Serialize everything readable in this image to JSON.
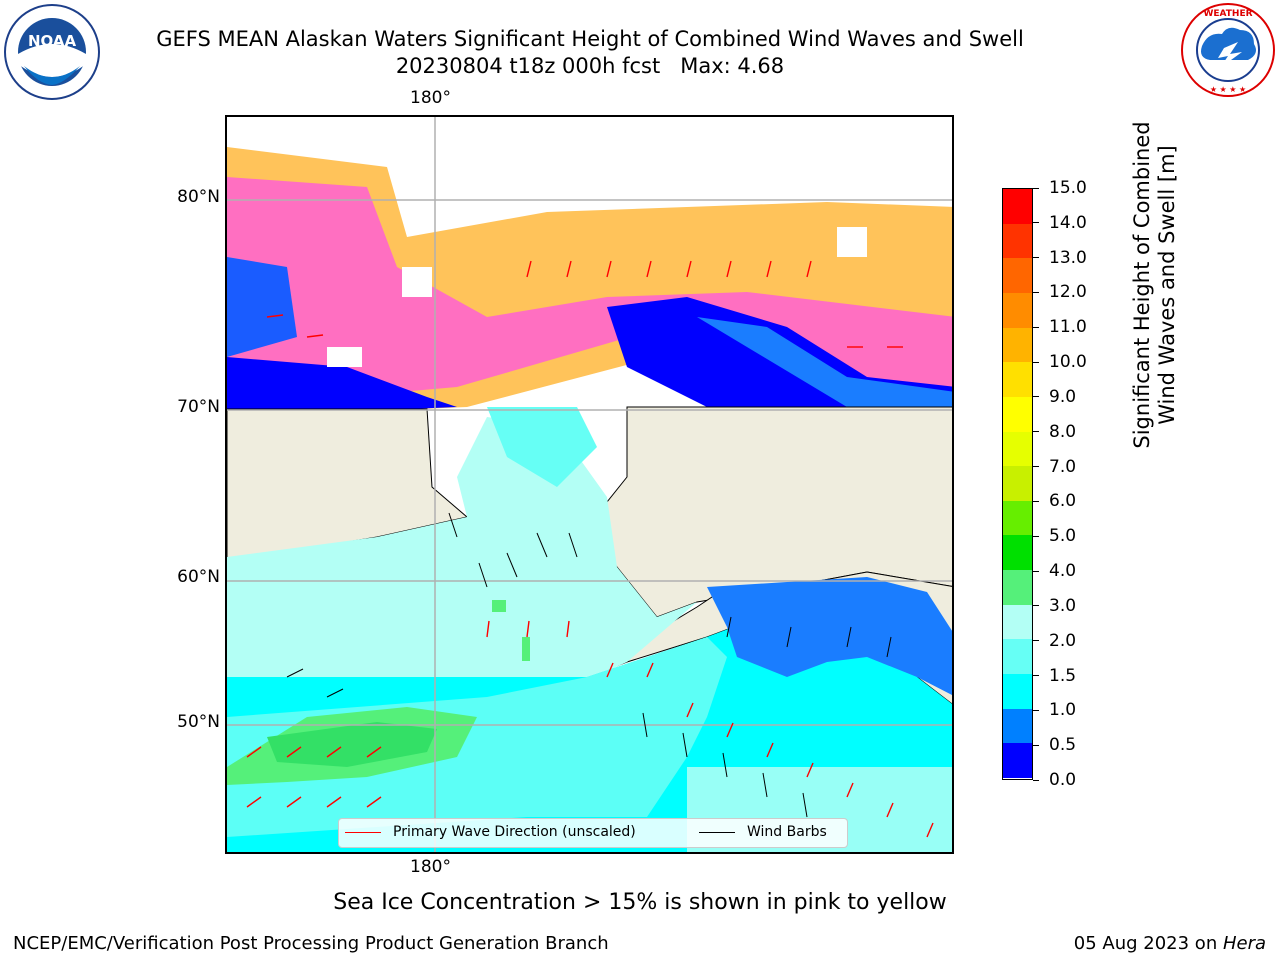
{
  "header": {
    "title_line1": "GEFS MEAN Alaskan Waters Significant Height of Combined Wind Waves and Swell",
    "title_line2": "20230804 t18z 000h fcst   Max: 4.68"
  },
  "logos": {
    "noaa_text": "NOAA",
    "noaa_ring_text": "NATIONAL OCEANIC AND ATMOSPHERIC ADMINISTRATION · U.S. DEPARTMENT OF COMMERCE",
    "nws_ring_text": "NATIONAL WEATHER SERVICE"
  },
  "map": {
    "lon_label_top": "180°",
    "lon_label_bottom": "180°",
    "lat_labels": [
      "80°N",
      "70°N",
      "60°N",
      "50°N"
    ],
    "legend": {
      "wave_label": "Primary Wave Direction (unscaled)",
      "wave_color": "#ff0000",
      "wind_label": "Wind Barbs",
      "wind_color": "#000000"
    },
    "land_color": "#efedde",
    "grid_color": "#b0b0b0"
  },
  "colorbar": {
    "label_line1": "Significant Height of Combined",
    "label_line2": "Wind Waves and Swell [m]",
    "ticks": [
      "15.0",
      "14.0",
      "13.0",
      "12.0",
      "11.0",
      "10.0",
      "9.0",
      "8.0",
      "7.0",
      "6.0",
      "5.0",
      "4.0",
      "3.0",
      "2.0",
      "1.5",
      "1.0",
      "0.5",
      "0.0"
    ],
    "colors": [
      "#ff0000",
      "#ff3300",
      "#ff6600",
      "#ff8c00",
      "#ffb300",
      "#ffe000",
      "#ffff00",
      "#e6ff00",
      "#c8f000",
      "#66ee00",
      "#00e000",
      "#55f07a",
      "#b3fff5",
      "#66fff5",
      "#00ffff",
      "#0080ff",
      "#0000ff"
    ]
  },
  "caption": "Sea Ice Concentration > 15% is shown in pink to yellow",
  "footer": {
    "left": "NCEP/EMC/Verification Post Processing Product Generation Branch",
    "right_date": "05 Aug 2023 on ",
    "right_host": "Hera"
  }
}
